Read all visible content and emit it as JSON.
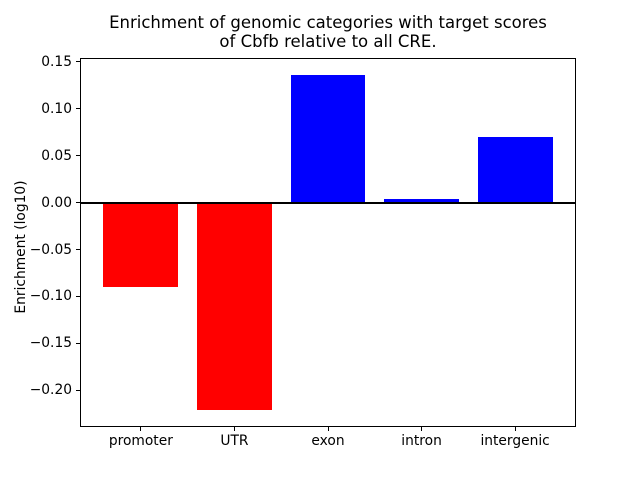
{
  "title": {
    "line1": "Enrichment of genomic categories with target scores",
    "line2": "of Cbfb relative to all CRE."
  },
  "chart_data": {
    "type": "bar",
    "title": "Enrichment of genomic categories with target scores\nof Cbfb relative to all CRE.",
    "xlabel": "",
    "ylabel": "Enrichment (log10)",
    "categories": [
      "promoter",
      "UTR",
      "exon",
      "intron",
      "intergenic"
    ],
    "values": [
      -0.09,
      -0.221,
      0.136,
      0.004,
      0.07
    ],
    "bar_colors": [
      "#ff0000",
      "#ff0000",
      "#0000ff",
      "#0000ff",
      "#0000ff"
    ],
    "negative_color": "#ff0000",
    "positive_color": "#0000ff",
    "ylim": [
      -0.238,
      0.153
    ],
    "yticks": [
      0.15,
      0.1,
      0.05,
      0.0,
      -0.05,
      -0.1,
      -0.15,
      -0.2
    ],
    "ytick_labels": [
      "0.15",
      "0.10",
      "0.05",
      "0.00",
      "−0.05",
      "−0.10",
      "−0.15",
      "−0.20"
    ],
    "zero_line": true,
    "zero_line_color": "#000000",
    "grid": false,
    "legend": false,
    "background_color": "#ffffff",
    "spine_color": "#000000"
  }
}
